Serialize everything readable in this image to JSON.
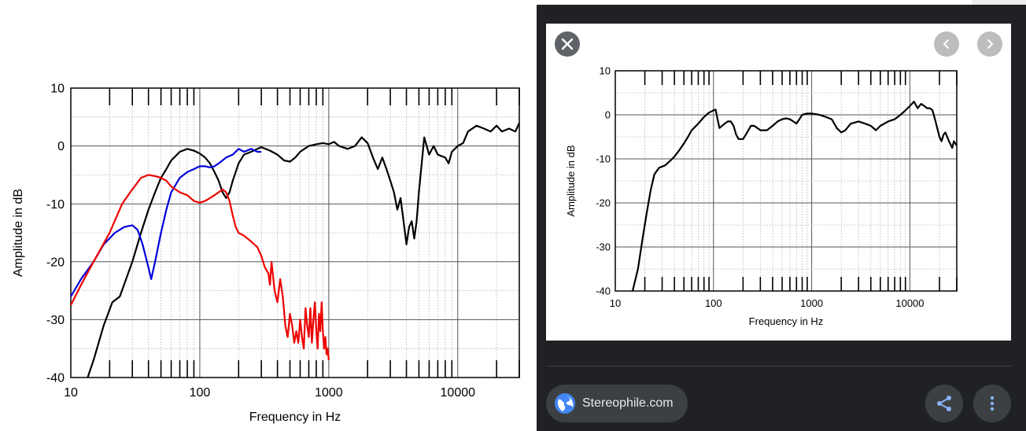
{
  "left_chart": {
    "chart_data": {
      "type": "line",
      "xscale": "log",
      "xlim": [
        10,
        30000
      ],
      "ylim": [
        -40,
        10
      ],
      "xlabel": "Frequency in Hz",
      "ylabel": "Amplitude in dB",
      "x_ticks": [
        "10",
        "100",
        "1000",
        "10000"
      ],
      "y_ticks": [
        "10",
        "0",
        "-10",
        "-20",
        "-30",
        "-40"
      ],
      "grid": true,
      "series": [
        {
          "color": "#000000",
          "points": [
            [
              13.5,
              -40
            ],
            [
              15,
              -37
            ],
            [
              18,
              -31
            ],
            [
              21,
              -27
            ],
            [
              24,
              -26
            ],
            [
              30,
              -20
            ],
            [
              35,
              -15
            ],
            [
              40,
              -11
            ],
            [
              45,
              -8
            ],
            [
              50,
              -5.5
            ],
            [
              55,
              -4
            ],
            [
              60,
              -2.5
            ],
            [
              70,
              -1
            ],
            [
              80,
              -0.5
            ],
            [
              90,
              -0.8
            ],
            [
              100,
              -1.3
            ],
            [
              110,
              -2
            ],
            [
              120,
              -3
            ],
            [
              130,
              -4.5
            ],
            [
              140,
              -6
            ],
            [
              150,
              -8
            ],
            [
              160,
              -9
            ],
            [
              170,
              -8
            ],
            [
              180,
              -6
            ],
            [
              200,
              -3
            ],
            [
              220,
              -1.5
            ],
            [
              250,
              -1
            ],
            [
              280,
              -0.5
            ],
            [
              300,
              -0.2
            ],
            [
              350,
              -0.8
            ],
            [
              400,
              -1.5
            ],
            [
              450,
              -2.5
            ],
            [
              500,
              -2.7
            ],
            [
              550,
              -2
            ],
            [
              600,
              -1
            ],
            [
              700,
              0
            ],
            [
              800,
              0.3
            ],
            [
              900,
              0.5
            ],
            [
              1000,
              0.3
            ],
            [
              1100,
              0.7
            ],
            [
              1200,
              0
            ],
            [
              1400,
              -0.5
            ],
            [
              1600,
              0
            ],
            [
              1800,
              1.5
            ],
            [
              2000,
              0.5
            ],
            [
              2200,
              -2
            ],
            [
              2400,
              -4
            ],
            [
              2600,
              -2
            ],
            [
              2800,
              -4
            ],
            [
              3000,
              -6
            ],
            [
              3200,
              -8
            ],
            [
              3400,
              -11
            ],
            [
              3600,
              -9
            ],
            [
              3800,
              -13
            ],
            [
              4000,
              -17
            ],
            [
              4200,
              -14
            ],
            [
              4400,
              -13
            ],
            [
              4600,
              -16
            ],
            [
              4800,
              -13
            ],
            [
              5000,
              -8
            ],
            [
              5500,
              1.5
            ],
            [
              6000,
              -1.5
            ],
            [
              6500,
              0
            ],
            [
              7000,
              -1.5
            ],
            [
              8000,
              -2
            ],
            [
              8500,
              -3
            ],
            [
              9000,
              -1
            ],
            [
              10000,
              0
            ],
            [
              11000,
              0.5
            ],
            [
              12000,
              2.5
            ],
            [
              14000,
              3.5
            ],
            [
              16000,
              3
            ],
            [
              18000,
              2.5
            ],
            [
              20000,
              3.5
            ],
            [
              22000,
              2.5
            ],
            [
              25000,
              3
            ],
            [
              28000,
              2.5
            ],
            [
              30000,
              4
            ]
          ]
        },
        {
          "color": "#0000dd",
          "points": [
            [
              10,
              -26
            ],
            [
              12,
              -23
            ],
            [
              15,
              -20
            ],
            [
              18,
              -17
            ],
            [
              22,
              -15
            ],
            [
              26,
              -14
            ],
            [
              30,
              -13.7
            ],
            [
              33,
              -14.5
            ],
            [
              36,
              -17
            ],
            [
              40,
              -21
            ],
            [
              42,
              -23
            ],
            [
              45,
              -20
            ],
            [
              50,
              -15
            ],
            [
              55,
              -11
            ],
            [
              60,
              -8
            ],
            [
              70,
              -5.5
            ],
            [
              80,
              -4.5
            ],
            [
              90,
              -4
            ],
            [
              100,
              -3.5
            ],
            [
              110,
              -3.5
            ],
            [
              120,
              -3.7
            ],
            [
              130,
              -3.5
            ],
            [
              140,
              -3
            ],
            [
              150,
              -2.5
            ],
            [
              160,
              -2
            ],
            [
              180,
              -1.5
            ],
            [
              200,
              -0.5
            ],
            [
              220,
              -1
            ],
            [
              250,
              -0.5
            ],
            [
              280,
              -1
            ],
            [
              300,
              -1
            ]
          ]
        },
        {
          "color": "#ee0000",
          "points": [
            [
              10,
              -27.5
            ],
            [
              12,
              -24
            ],
            [
              15,
              -20
            ],
            [
              20,
              -15
            ],
            [
              25,
              -10
            ],
            [
              30,
              -7.5
            ],
            [
              35,
              -5.5
            ],
            [
              40,
              -5
            ],
            [
              45,
              -5.2
            ],
            [
              50,
              -5.5
            ],
            [
              55,
              -6
            ],
            [
              60,
              -7
            ],
            [
              70,
              -8
            ],
            [
              80,
              -8.5
            ],
            [
              90,
              -9.5
            ],
            [
              100,
              -9.8
            ],
            [
              110,
              -9.5
            ],
            [
              120,
              -9
            ],
            [
              130,
              -8.5
            ],
            [
              140,
              -8
            ],
            [
              150,
              -7.5
            ],
            [
              160,
              -8
            ],
            [
              170,
              -9.5
            ],
            [
              180,
              -12
            ],
            [
              190,
              -14
            ],
            [
              200,
              -15
            ],
            [
              220,
              -15.5
            ],
            [
              250,
              -16.5
            ],
            [
              280,
              -17.5
            ],
            [
              300,
              -19
            ],
            [
              320,
              -21
            ],
            [
              340,
              -22
            ],
            [
              350,
              -24
            ],
            [
              360,
              -20
            ],
            [
              380,
              -25
            ],
            [
              400,
              -27
            ],
            [
              420,
              -23
            ],
            [
              440,
              -26
            ],
            [
              460,
              -31
            ],
            [
              480,
              -33
            ],
            [
              500,
              -29
            ],
            [
              520,
              -31
            ],
            [
              540,
              -34
            ],
            [
              560,
              -32
            ],
            [
              580,
              -34
            ],
            [
              600,
              -30
            ],
            [
              620,
              -33
            ],
            [
              640,
              -35
            ],
            [
              660,
              -28
            ],
            [
              680,
              -31
            ],
            [
              700,
              -33
            ],
            [
              720,
              -28
            ],
            [
              740,
              -34
            ],
            [
              760,
              -30
            ],
            [
              780,
              -27
            ],
            [
              800,
              -32
            ],
            [
              820,
              -35
            ],
            [
              840,
              -29
            ],
            [
              860,
              -32
            ],
            [
              880,
              -27
            ],
            [
              900,
              -32
            ],
            [
              920,
              -35
            ],
            [
              940,
              -33
            ],
            [
              960,
              -36
            ],
            [
              980,
              -35
            ],
            [
              1000,
              -37
            ]
          ]
        }
      ]
    }
  },
  "viewer": {
    "close_icon": "close-icon",
    "prev_icon": "chevron-left-icon",
    "next_icon": "chevron-right-icon",
    "source_label": "Stereophile.com",
    "share_icon": "share-icon",
    "more_icon": "more-vert-icon",
    "colors": {
      "background": "#202124",
      "chip": "#3c4043",
      "accent": "#4285f4"
    },
    "chart_data": {
      "type": "line",
      "xscale": "log",
      "xlim": [
        10,
        30000
      ],
      "ylim": [
        -40,
        10
      ],
      "xlabel": "Frequency in Hz",
      "ylabel": "Amplitude in dB",
      "x_ticks": [
        "10",
        "100",
        "1000",
        "10000"
      ],
      "y_ticks": [
        "10",
        "0",
        "-10",
        "-20",
        "-30",
        "-40"
      ],
      "grid": true,
      "series": [
        {
          "color": "#000000",
          "points": [
            [
              15,
              -40
            ],
            [
              17,
              -35
            ],
            [
              19,
              -28
            ],
            [
              21,
              -22
            ],
            [
              23,
              -17
            ],
            [
              25,
              -13.5
            ],
            [
              28,
              -12
            ],
            [
              32,
              -11.5
            ],
            [
              36,
              -10.5
            ],
            [
              40,
              -9.5
            ],
            [
              45,
              -8
            ],
            [
              50,
              -6.5
            ],
            [
              55,
              -5
            ],
            [
              60,
              -3.5
            ],
            [
              70,
              -2
            ],
            [
              80,
              -0.5
            ],
            [
              90,
              0.5
            ],
            [
              100,
              1
            ],
            [
              105,
              1.2
            ],
            [
              110,
              -1
            ],
            [
              115,
              -3
            ],
            [
              130,
              -2
            ],
            [
              140,
              -1.5
            ],
            [
              150,
              -1.5
            ],
            [
              160,
              -2.5
            ],
            [
              170,
              -4.5
            ],
            [
              180,
              -5.5
            ],
            [
              200,
              -5.5
            ],
            [
              220,
              -4
            ],
            [
              240,
              -2.5
            ],
            [
              260,
              -2.5
            ],
            [
              280,
              -3
            ],
            [
              300,
              -3.5
            ],
            [
              350,
              -3.5
            ],
            [
              400,
              -2.5
            ],
            [
              450,
              -1.5
            ],
            [
              500,
              -1
            ],
            [
              550,
              -0.8
            ],
            [
              600,
              -1
            ],
            [
              650,
              -1.5
            ],
            [
              700,
              -2
            ],
            [
              750,
              -1
            ],
            [
              800,
              0
            ],
            [
              900,
              0.3
            ],
            [
              1000,
              0.3
            ],
            [
              1200,
              0
            ],
            [
              1400,
              -0.5
            ],
            [
              1600,
              -1
            ],
            [
              1800,
              -3
            ],
            [
              2000,
              -4
            ],
            [
              2200,
              -3.5
            ],
            [
              2500,
              -2
            ],
            [
              3000,
              -1.5
            ],
            [
              3500,
              -2
            ],
            [
              4000,
              -2.5
            ],
            [
              4500,
              -3.5
            ],
            [
              5000,
              -2.5
            ],
            [
              6000,
              -1.5
            ],
            [
              7000,
              -1
            ],
            [
              8000,
              0
            ],
            [
              9000,
              1
            ],
            [
              10000,
              2
            ],
            [
              11000,
              3
            ],
            [
              12000,
              1.5
            ],
            [
              13000,
              2.5
            ],
            [
              14000,
              2
            ],
            [
              15000,
              1.5
            ],
            [
              16000,
              1.5
            ],
            [
              17000,
              1
            ],
            [
              18000,
              -1
            ],
            [
              19000,
              -3
            ],
            [
              20000,
              -5
            ],
            [
              21000,
              -6
            ],
            [
              22000,
              -4.5
            ],
            [
              23000,
              -4
            ],
            [
              25000,
              -6
            ],
            [
              27000,
              -7.5
            ],
            [
              28000,
              -6
            ],
            [
              30000,
              -7
            ]
          ]
        }
      ]
    }
  }
}
